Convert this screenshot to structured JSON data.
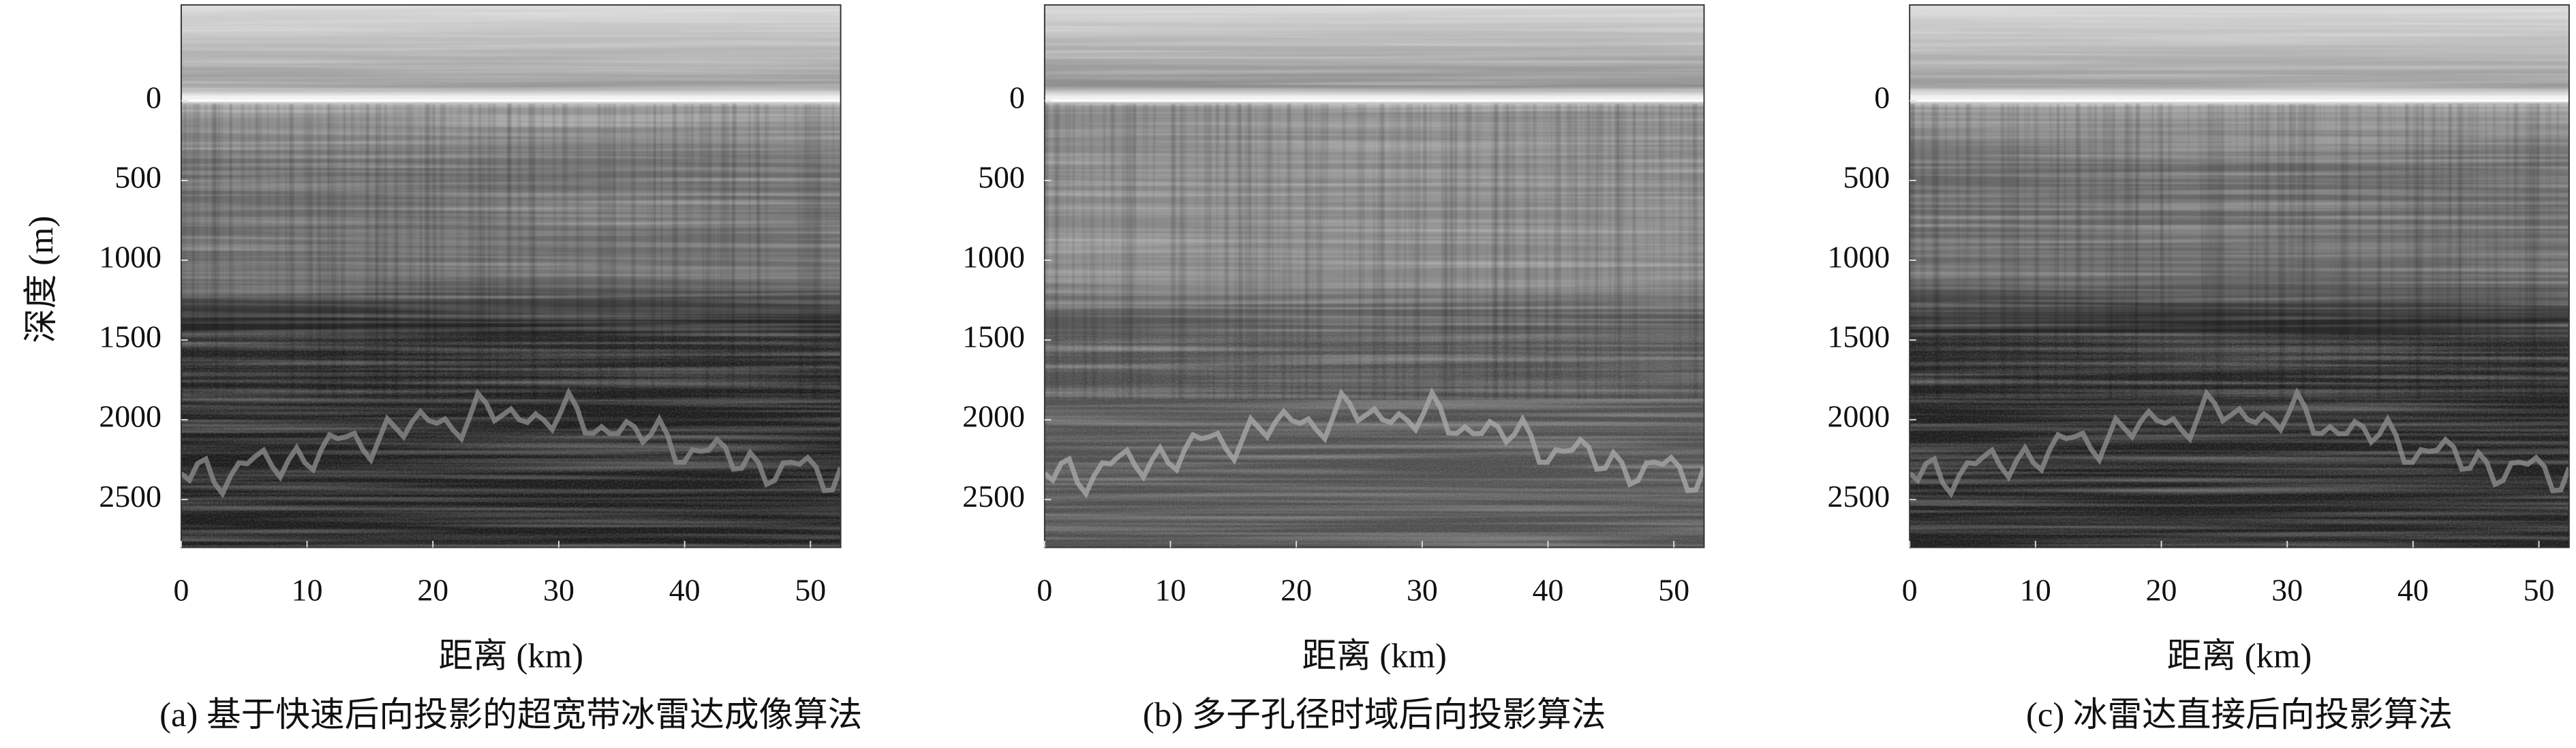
{
  "chart_data": [
    {
      "type": "radargram",
      "caption": "(a) 基于快速后向投影的超宽带冰雷达成像算法",
      "xlabel": "距离 (km)",
      "ylabel": "深度 (m)",
      "xlim": [
        0,
        52.4
      ],
      "ylim": [
        2800,
        -600
      ],
      "xticks": [
        0,
        10,
        20,
        30,
        40,
        50
      ],
      "yticks": [
        0,
        500,
        1000,
        1500,
        2000,
        2500
      ]
    },
    {
      "type": "radargram",
      "caption": "(b) 多子孔径时域后向投影算法",
      "xlabel": "距离 (km)",
      "xlim": [
        0,
        52.4
      ],
      "ylim": [
        2800,
        -600
      ],
      "xticks": [
        0,
        10,
        20,
        30,
        40,
        50
      ],
      "yticks": [
        0,
        500,
        1000,
        1500,
        2000,
        2500
      ]
    },
    {
      "type": "radargram",
      "caption": "(c) 冰雷达直接后向投影算法",
      "xlabel": "距离 (km)",
      "xlim": [
        0,
        52.4
      ],
      "ylim": [
        2800,
        -600
      ],
      "xticks": [
        0,
        10,
        20,
        30,
        40,
        50
      ],
      "yticks": [
        0,
        500,
        1000,
        1500,
        2000,
        2500
      ]
    }
  ]
}
